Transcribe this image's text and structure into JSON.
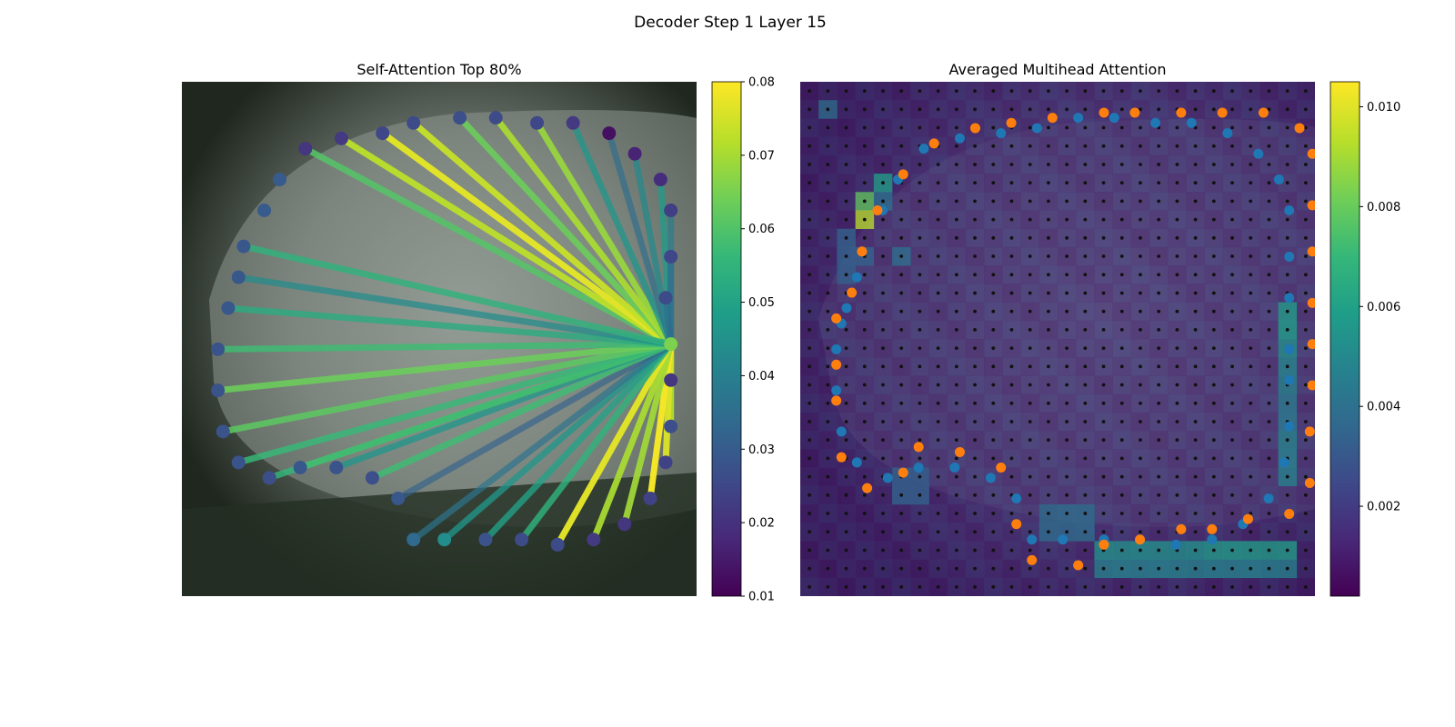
{
  "figure": {
    "suptitle": "Decoder Step 1 Layer 15"
  },
  "colors": {
    "viridis": [
      "#440154",
      "#482878",
      "#3e4989",
      "#31688e",
      "#26828e",
      "#1f9e89",
      "#35b779",
      "#6ece58",
      "#b5de2b",
      "#fde725"
    ],
    "pred_points": "#1f77b4",
    "gt_points": "#ff7f0e",
    "grid_points": "#111111",
    "image_dark": "#1d241c",
    "image_car": "#77807a"
  },
  "chart_data": [
    {
      "type": "scatter",
      "title": "Self-Attention Top 80%",
      "description_kind": "attention lines from query point to polygon vertices over an image",
      "query_point": {
        "x": 0.95,
        "y": 0.51,
        "weight": 0.066
      },
      "points": [
        {
          "x": 0.24,
          "y": 0.13,
          "w": 0.021
        },
        {
          "x": 0.31,
          "y": 0.11,
          "w": 0.022
        },
        {
          "x": 0.39,
          "y": 0.1,
          "w": 0.025
        },
        {
          "x": 0.45,
          "y": 0.08,
          "w": 0.026
        },
        {
          "x": 0.54,
          "y": 0.07,
          "w": 0.027
        },
        {
          "x": 0.61,
          "y": 0.07,
          "w": 0.026
        },
        {
          "x": 0.69,
          "y": 0.08,
          "w": 0.025
        },
        {
          "x": 0.76,
          "y": 0.08,
          "w": 0.022
        },
        {
          "x": 0.83,
          "y": 0.1,
          "w": 0.013
        },
        {
          "x": 0.88,
          "y": 0.14,
          "w": 0.017
        },
        {
          "x": 0.93,
          "y": 0.19,
          "w": 0.019
        },
        {
          "x": 0.95,
          "y": 0.25,
          "w": 0.023
        },
        {
          "x": 0.95,
          "y": 0.34,
          "w": 0.025
        },
        {
          "x": 0.94,
          "y": 0.42,
          "w": 0.026
        },
        {
          "x": 0.95,
          "y": 0.58,
          "w": 0.021
        },
        {
          "x": 0.95,
          "y": 0.67,
          "w": 0.027
        },
        {
          "x": 0.94,
          "y": 0.74,
          "w": 0.024
        },
        {
          "x": 0.91,
          "y": 0.81,
          "w": 0.024
        },
        {
          "x": 0.86,
          "y": 0.86,
          "w": 0.021
        },
        {
          "x": 0.8,
          "y": 0.89,
          "w": 0.022
        },
        {
          "x": 0.73,
          "y": 0.9,
          "w": 0.026
        },
        {
          "x": 0.66,
          "y": 0.89,
          "w": 0.026
        },
        {
          "x": 0.59,
          "y": 0.89,
          "w": 0.028
        },
        {
          "x": 0.51,
          "y": 0.89,
          "w": 0.044
        },
        {
          "x": 0.45,
          "y": 0.89,
          "w": 0.034
        },
        {
          "x": 0.42,
          "y": 0.81,
          "w": 0.029
        },
        {
          "x": 0.37,
          "y": 0.77,
          "w": 0.027
        },
        {
          "x": 0.3,
          "y": 0.75,
          "w": 0.028
        },
        {
          "x": 0.23,
          "y": 0.75,
          "w": 0.029
        },
        {
          "x": 0.17,
          "y": 0.77,
          "w": 0.027
        },
        {
          "x": 0.11,
          "y": 0.74,
          "w": 0.028
        },
        {
          "x": 0.08,
          "y": 0.68,
          "w": 0.028
        },
        {
          "x": 0.07,
          "y": 0.6,
          "w": 0.028
        },
        {
          "x": 0.07,
          "y": 0.52,
          "w": 0.028
        },
        {
          "x": 0.09,
          "y": 0.44,
          "w": 0.029
        },
        {
          "x": 0.11,
          "y": 0.38,
          "w": 0.029
        },
        {
          "x": 0.12,
          "y": 0.32,
          "w": 0.029
        },
        {
          "x": 0.16,
          "y": 0.25,
          "w": 0.03
        },
        {
          "x": 0.19,
          "y": 0.19,
          "w": 0.03
        }
      ],
      "lines": [
        {
          "to": 0,
          "w": 0.061
        },
        {
          "to": 1,
          "w": 0.073
        },
        {
          "to": 2,
          "w": 0.077
        },
        {
          "to": 3,
          "w": 0.074
        },
        {
          "to": 4,
          "w": 0.064
        },
        {
          "to": 5,
          "w": 0.071
        },
        {
          "to": 6,
          "w": 0.069
        },
        {
          "to": 7,
          "w": 0.047
        },
        {
          "to": 8,
          "w": 0.035
        },
        {
          "to": 9,
          "w": 0.043
        },
        {
          "to": 10,
          "w": 0.048
        },
        {
          "to": 11,
          "w": 0.04
        },
        {
          "to": 12,
          "w": 0.035
        },
        {
          "to": 13,
          "w": 0.034
        },
        {
          "to": 14,
          "w": 0.068
        },
        {
          "to": 15,
          "w": 0.072
        },
        {
          "to": 16,
          "w": 0.076
        },
        {
          "to": 17,
          "w": 0.079
        },
        {
          "to": 18,
          "w": 0.07
        },
        {
          "to": 19,
          "w": 0.071
        },
        {
          "to": 20,
          "w": 0.077
        },
        {
          "to": 21,
          "w": 0.055
        },
        {
          "to": 22,
          "w": 0.05
        },
        {
          "to": 23,
          "w": 0.047
        },
        {
          "to": 24,
          "w": 0.037
        },
        {
          "to": 25,
          "w": 0.032
        },
        {
          "to": 26,
          "w": 0.058
        },
        {
          "to": 27,
          "w": 0.047
        },
        {
          "to": 28,
          "w": 0.068
        },
        {
          "to": 29,
          "w": 0.056
        },
        {
          "to": 30,
          "w": 0.057
        },
        {
          "to": 31,
          "w": 0.062
        },
        {
          "to": 32,
          "w": 0.064
        },
        {
          "to": 33,
          "w": 0.058
        },
        {
          "to": 34,
          "w": 0.053
        },
        {
          "to": 35,
          "w": 0.044
        },
        {
          "to": 36,
          "w": 0.055
        }
      ],
      "colorbar": {
        "min": 0.01,
        "max": 0.08,
        "ticks": [
          "0.01",
          "0.02",
          "0.03",
          "0.04",
          "0.05",
          "0.06",
          "0.07",
          "0.08"
        ]
      },
      "axes_visible": false
    },
    {
      "type": "heatmap",
      "title": "Averaged Multihead Attention",
      "grid_cells": [
        28,
        28
      ],
      "hot_cells": [
        {
          "col": 1,
          "row": 1,
          "w": 0.004
        },
        {
          "col": 4,
          "row": 5,
          "w": 0.006
        },
        {
          "col": 3,
          "row": 6,
          "w": 0.008
        },
        {
          "col": 3,
          "row": 7,
          "w": 0.0095
        },
        {
          "col": 4,
          "row": 6,
          "w": 0.004
        },
        {
          "col": 26,
          "row": 12,
          "w": 0.006
        },
        {
          "col": 26,
          "row": 13,
          "w": 0.006
        },
        {
          "col": 26,
          "row": 14,
          "w": 0.0055
        },
        {
          "col": 26,
          "row": 15,
          "w": 0.005
        },
        {
          "col": 26,
          "row": 16,
          "w": 0.005
        },
        {
          "col": 26,
          "row": 17,
          "w": 0.0045
        },
        {
          "col": 26,
          "row": 18,
          "w": 0.0045
        },
        {
          "col": 26,
          "row": 19,
          "w": 0.005
        },
        {
          "col": 26,
          "row": 20,
          "w": 0.005
        },
        {
          "col": 26,
          "row": 21,
          "w": 0.005
        },
        {
          "col": 16,
          "row": 25,
          "w": 0.0055
        },
        {
          "col": 17,
          "row": 25,
          "w": 0.0055
        },
        {
          "col": 18,
          "row": 25,
          "w": 0.0055
        },
        {
          "col": 19,
          "row": 25,
          "w": 0.0055
        },
        {
          "col": 20,
          "row": 25,
          "w": 0.0055
        },
        {
          "col": 21,
          "row": 25,
          "w": 0.0055
        },
        {
          "col": 22,
          "row": 25,
          "w": 0.006
        },
        {
          "col": 23,
          "row": 25,
          "w": 0.006
        },
        {
          "col": 24,
          "row": 25,
          "w": 0.006
        },
        {
          "col": 25,
          "row": 25,
          "w": 0.006
        },
        {
          "col": 26,
          "row": 25,
          "w": 0.006
        },
        {
          "col": 16,
          "row": 26,
          "w": 0.005
        },
        {
          "col": 17,
          "row": 26,
          "w": 0.005
        },
        {
          "col": 18,
          "row": 26,
          "w": 0.005
        },
        {
          "col": 19,
          "row": 26,
          "w": 0.005
        },
        {
          "col": 20,
          "row": 26,
          "w": 0.005
        },
        {
          "col": 21,
          "row": 26,
          "w": 0.005
        },
        {
          "col": 22,
          "row": 26,
          "w": 0.005
        },
        {
          "col": 23,
          "row": 26,
          "w": 0.005
        },
        {
          "col": 24,
          "row": 26,
          "w": 0.005
        },
        {
          "col": 25,
          "row": 26,
          "w": 0.005
        },
        {
          "col": 26,
          "row": 26,
          "w": 0.005
        },
        {
          "col": 13,
          "row": 23,
          "w": 0.004
        },
        {
          "col": 14,
          "row": 23,
          "w": 0.004
        },
        {
          "col": 15,
          "row": 23,
          "w": 0.004
        },
        {
          "col": 13,
          "row": 24,
          "w": 0.004
        },
        {
          "col": 14,
          "row": 24,
          "w": 0.004
        },
        {
          "col": 15,
          "row": 24,
          "w": 0.004
        },
        {
          "col": 5,
          "row": 21,
          "w": 0.0035
        },
        {
          "col": 6,
          "row": 21,
          "w": 0.0035
        },
        {
          "col": 5,
          "row": 22,
          "w": 0.0035
        },
        {
          "col": 6,
          "row": 22,
          "w": 0.0035
        },
        {
          "col": 2,
          "row": 8,
          "w": 0.0035
        },
        {
          "col": 2,
          "row": 9,
          "w": 0.0035
        },
        {
          "col": 3,
          "row": 9,
          "w": 0.0035
        },
        {
          "col": 2,
          "row": 10,
          "w": 0.0035
        },
        {
          "col": 5,
          "row": 9,
          "w": 0.004
        }
      ],
      "pred_points": [
        [
          0.07,
          0.52
        ],
        [
          0.08,
          0.47
        ],
        [
          0.09,
          0.44
        ],
        [
          0.11,
          0.38
        ],
        [
          0.07,
          0.6
        ],
        [
          0.08,
          0.68
        ],
        [
          0.11,
          0.74
        ],
        [
          0.17,
          0.77
        ],
        [
          0.23,
          0.75
        ],
        [
          0.3,
          0.75
        ],
        [
          0.37,
          0.77
        ],
        [
          0.42,
          0.81
        ],
        [
          0.45,
          0.89
        ],
        [
          0.51,
          0.89
        ],
        [
          0.59,
          0.89
        ],
        [
          0.66,
          0.89
        ],
        [
          0.73,
          0.9
        ],
        [
          0.8,
          0.89
        ],
        [
          0.86,
          0.86
        ],
        [
          0.91,
          0.81
        ],
        [
          0.94,
          0.74
        ],
        [
          0.95,
          0.67
        ],
        [
          0.95,
          0.58
        ],
        [
          0.95,
          0.52
        ],
        [
          0.95,
          0.42
        ],
        [
          0.95,
          0.34
        ],
        [
          0.95,
          0.25
        ],
        [
          0.93,
          0.19
        ],
        [
          0.89,
          0.14
        ],
        [
          0.83,
          0.1
        ],
        [
          0.76,
          0.08
        ],
        [
          0.69,
          0.08
        ],
        [
          0.61,
          0.07
        ],
        [
          0.54,
          0.07
        ],
        [
          0.46,
          0.09
        ],
        [
          0.39,
          0.1
        ],
        [
          0.31,
          0.11
        ],
        [
          0.24,
          0.13
        ],
        [
          0.19,
          0.19
        ],
        [
          0.16,
          0.25
        ]
      ],
      "gt_points": [
        [
          0.07,
          0.46
        ],
        [
          0.07,
          0.55
        ],
        [
          0.07,
          0.62
        ],
        [
          0.08,
          0.73
        ],
        [
          0.13,
          0.79
        ],
        [
          0.2,
          0.76
        ],
        [
          0.23,
          0.71
        ],
        [
          0.31,
          0.72
        ],
        [
          0.39,
          0.75
        ],
        [
          0.42,
          0.86
        ],
        [
          0.45,
          0.93
        ],
        [
          0.54,
          0.94
        ],
        [
          0.59,
          0.9
        ],
        [
          0.66,
          0.89
        ],
        [
          0.74,
          0.87
        ],
        [
          0.8,
          0.87
        ],
        [
          0.87,
          0.85
        ],
        [
          0.95,
          0.84
        ],
        [
          0.99,
          0.78
        ],
        [
          0.99,
          0.68
        ],
        [
          1.0,
          0.59
        ],
        [
          1.0,
          0.51
        ],
        [
          1.0,
          0.43
        ],
        [
          1.0,
          0.33
        ],
        [
          1.0,
          0.24
        ],
        [
          1.0,
          0.14
        ],
        [
          0.97,
          0.09
        ],
        [
          0.9,
          0.06
        ],
        [
          0.82,
          0.06
        ],
        [
          0.74,
          0.06
        ],
        [
          0.65,
          0.06
        ],
        [
          0.59,
          0.06
        ],
        [
          0.49,
          0.07
        ],
        [
          0.41,
          0.08
        ],
        [
          0.34,
          0.09
        ],
        [
          0.26,
          0.12
        ],
        [
          0.2,
          0.18
        ],
        [
          0.15,
          0.25
        ],
        [
          0.12,
          0.33
        ],
        [
          0.1,
          0.41
        ]
      ],
      "colorbar": {
        "min": 0.0002,
        "max": 0.0105,
        "ticks": [
          "0.002",
          "0.004",
          "0.006",
          "0.008",
          "0.010"
        ]
      },
      "axes_visible": false
    }
  ]
}
